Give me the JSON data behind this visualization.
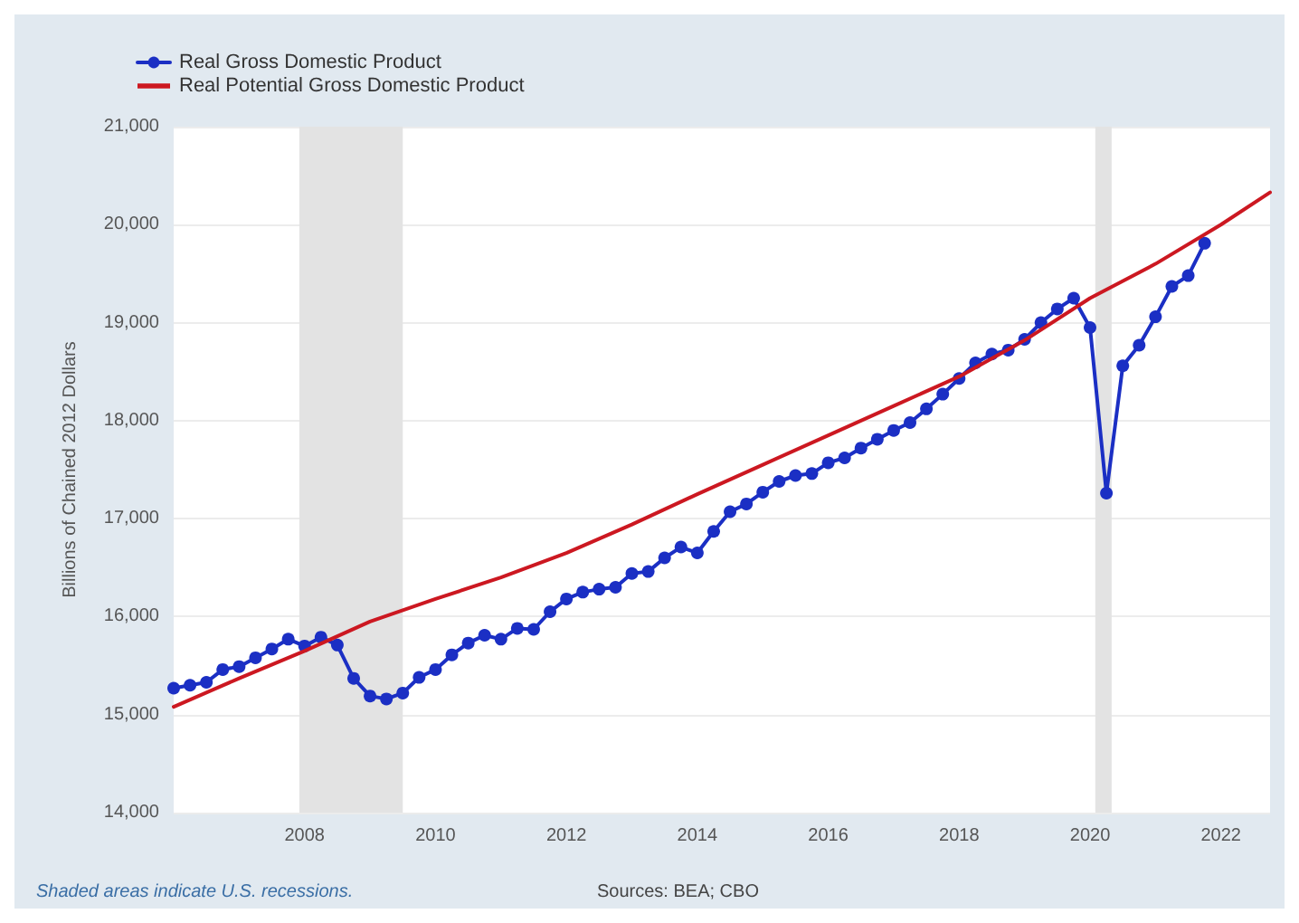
{
  "chart_data": {
    "type": "line",
    "ylabel": "Billions of Chained 2012 Dollars",
    "xlim": [
      2006,
      2022.75
    ],
    "xticks": [
      2008,
      2010,
      2012,
      2014,
      2016,
      2018,
      2020,
      2022
    ],
    "ylim": [
      14000,
      21000
    ],
    "yticks": [
      {
        "value": 14000,
        "label": "14,000"
      },
      {
        "value": 15000,
        "label": "15,000"
      },
      {
        "value": 16000,
        "label": "16,000"
      },
      {
        "value": 17000,
        "label": "17,000"
      },
      {
        "value": 18000,
        "label": "18,000"
      },
      {
        "value": 19000,
        "label": "19,000"
      },
      {
        "value": 20000,
        "label": "20,000"
      },
      {
        "value": 21000,
        "label": "21,000"
      }
    ],
    "grid": "y",
    "legend": "top left",
    "marker": "circle",
    "bands": [
      {
        "axis": "x",
        "from": 2007.92,
        "to": 2009.5,
        "color": "#e3e3e3"
      },
      {
        "axis": "x",
        "from": 2020.08,
        "to": 2020.33,
        "color": "#e3e3e3"
      }
    ],
    "series": [
      {
        "name": "Real Gross Domestic Product",
        "color": "#1b2fc4",
        "x": [
          2006,
          2006.25,
          2006.5,
          2006.75,
          2007,
          2007.25,
          2007.5,
          2007.75,
          2008,
          2008.25,
          2008.5,
          2008.75,
          2009,
          2009.25,
          2009.5,
          2009.75,
          2010,
          2010.25,
          2010.5,
          2010.75,
          2011,
          2011.25,
          2011.5,
          2011.75,
          2012,
          2012.25,
          2012.5,
          2012.75,
          2013,
          2013.25,
          2013.5,
          2013.75,
          2014,
          2014.25,
          2014.5,
          2014.75,
          2015,
          2015.25,
          2015.5,
          2015.75,
          2016,
          2016.25,
          2016.5,
          2016.75,
          2017,
          2017.25,
          2017.5,
          2017.75,
          2018,
          2018.25,
          2018.5,
          2018.75,
          2019,
          2019.25,
          2019.5,
          2019.75,
          2020,
          2020.25,
          2020.5,
          2020.75,
          2021,
          2021.25,
          2021.5,
          2021.75
        ],
        "values": [
          15270,
          15300,
          15330,
          15460,
          15490,
          15580,
          15670,
          15770,
          15700,
          15790,
          15710,
          15370,
          15190,
          15160,
          15220,
          15380,
          15460,
          15610,
          15730,
          15810,
          15770,
          15880,
          15870,
          16050,
          16180,
          16250,
          16280,
          16300,
          16440,
          16460,
          16600,
          16710,
          16650,
          16870,
          17070,
          17150,
          17270,
          17380,
          17440,
          17460,
          17570,
          17620,
          17720,
          17810,
          17900,
          17980,
          18120,
          18270,
          18430,
          18590,
          18680,
          18720,
          18830,
          19000,
          19140,
          19250,
          18950,
          17260,
          18560,
          18770,
          19060,
          19370,
          19480,
          19810
        ]
      },
      {
        "name": "Real Potential Gross Domestic Product",
        "color": "#cc1821",
        "marker": "none",
        "x": [
          2006,
          2007,
          2008,
          2009,
          2010,
          2011,
          2012,
          2013,
          2014,
          2015,
          2016,
          2017,
          2018,
          2019,
          2020,
          2021,
          2022,
          2022.75
        ],
        "values": [
          15080,
          15370,
          15650,
          15950,
          16180,
          16400,
          16650,
          16940,
          17250,
          17550,
          17850,
          18150,
          18450,
          18820,
          19250,
          19600,
          20000,
          20330
        ]
      }
    ],
    "annotations": [
      "Shaded areas indicate U.S. recessions.",
      "Sources: BEA; CBO"
    ]
  }
}
